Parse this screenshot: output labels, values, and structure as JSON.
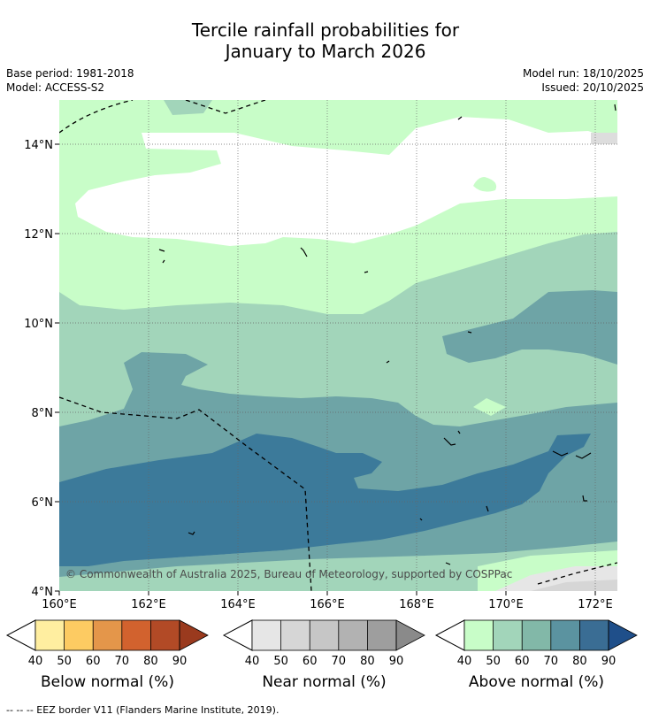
{
  "title": {
    "line1": "Tercile rainfall probabilities for",
    "line2": "January to March 2026"
  },
  "meta": {
    "base_period": "Base period: 1981-2018",
    "model": "Model: ACCESS-S2",
    "model_run": "Model run: 18/10/2025",
    "issued": "Issued: 20/10/2025"
  },
  "map": {
    "lat_labels": [
      "14°N",
      "12°N",
      "10°N",
      "8°N",
      "6°N",
      "4°N"
    ],
    "lon_labels": [
      "160°E",
      "162°E",
      "164°E",
      "166°E",
      "168°E",
      "170°E",
      "172°E"
    ],
    "copyright": "© Commonwealth of Australia 2025, Bureau of Meteorology, supported by COSPPac"
  },
  "colorbars": {
    "below": {
      "title": "Below normal (%)",
      "ticks": [
        "40",
        "50",
        "60",
        "70",
        "80",
        "90"
      ],
      "colors": [
        "#ffeea0",
        "#fdcb62",
        "#e4964a",
        "#d2622e",
        "#b24a26",
        "#9a3a1e"
      ]
    },
    "near": {
      "title": "Near normal (%)",
      "ticks": [
        "40",
        "50",
        "60",
        "70",
        "80",
        "90"
      ],
      "colors": [
        "#e6e6e6",
        "#d6d6d6",
        "#c6c6c6",
        "#b2b2b2",
        "#9e9e9e",
        "#8a8a8a"
      ]
    },
    "above": {
      "title": "Above normal (%)",
      "ticks": [
        "40",
        "50",
        "60",
        "70",
        "80",
        "90"
      ],
      "colors": [
        "#c8fdc8",
        "#a2d5ba",
        "#82b8a8",
        "#5b93a0",
        "#3a6d94",
        "#1f4f8a"
      ]
    }
  },
  "footnote": "--  --  -- EEZ border V11 (Flanders Marine Institute, 2019)."
}
